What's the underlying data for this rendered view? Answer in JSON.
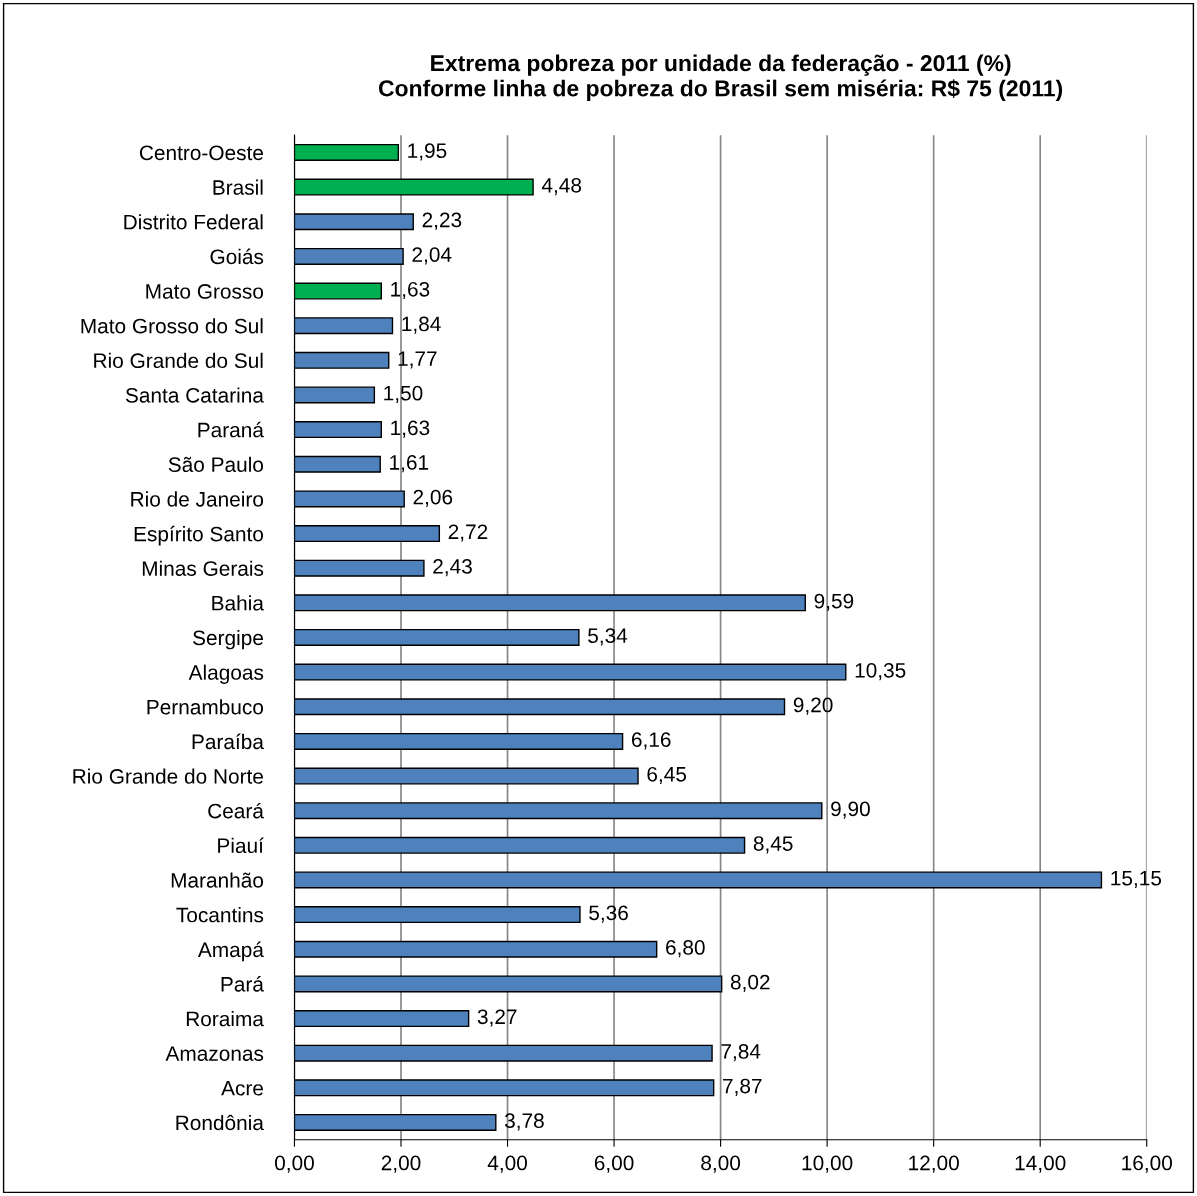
{
  "chart_data": {
    "type": "bar",
    "orientation": "horizontal",
    "title": "Extrema pobreza por unidade da federação - 2011 (%)\nConforme linha de pobreza do Brasil sem miséria: R$ 75 (2011)",
    "categories": [
      "Centro-Oeste",
      "Brasil",
      "Distrito Federal",
      "Goiás",
      "Mato Grosso",
      "Mato Grosso do Sul",
      "Rio Grande do Sul",
      "Santa Catarina",
      "Paraná",
      "São Paulo",
      "Rio de Janeiro",
      "Espírito Santo",
      "Minas Gerais",
      "Bahia",
      "Sergipe",
      "Alagoas",
      "Pernambuco",
      "Paraíba",
      "Rio Grande do Norte",
      "Ceará",
      "Piauí",
      "Maranhão",
      "Tocantins",
      "Amapá",
      "Pará",
      "Roraima",
      "Amazonas",
      "Acre",
      "Rondônia"
    ],
    "values": [
      1.95,
      4.48,
      2.23,
      2.04,
      1.63,
      1.84,
      1.77,
      1.5,
      1.63,
      1.61,
      2.06,
      2.72,
      2.43,
      9.59,
      5.34,
      10.35,
      9.2,
      6.16,
      6.45,
      9.9,
      8.45,
      15.15,
      5.36,
      6.8,
      8.02,
      3.27,
      7.84,
      7.87,
      3.78
    ],
    "value_labels": [
      "1,95",
      "4,48",
      "2,23",
      "2,04",
      "1,63",
      "1,84",
      "1,77",
      "1,50",
      "1,63",
      "1,61",
      "2,06",
      "2,72",
      "2,43",
      "9,59",
      "5,34",
      "10,35",
      "9,20",
      "6,16",
      "6,45",
      "9,90",
      "8,45",
      "15,15",
      "5,36",
      "6,80",
      "8,02",
      "3,27",
      "7,84",
      "7,87",
      "3,78"
    ],
    "colors": [
      "#00b050",
      "#00b050",
      "#4f81bd",
      "#4f81bd",
      "#00b050",
      "#4f81bd",
      "#4f81bd",
      "#4f81bd",
      "#4f81bd",
      "#4f81bd",
      "#4f81bd",
      "#4f81bd",
      "#4f81bd",
      "#4f81bd",
      "#4f81bd",
      "#4f81bd",
      "#4f81bd",
      "#4f81bd",
      "#4f81bd",
      "#4f81bd",
      "#4f81bd",
      "#4f81bd",
      "#4f81bd",
      "#4f81bd",
      "#4f81bd",
      "#4f81bd",
      "#4f81bd",
      "#4f81bd",
      "#4f81bd"
    ],
    "xlim": [
      0,
      16
    ],
    "xticks": [
      {
        "value": 0,
        "label": "0,00"
      },
      {
        "value": 2,
        "label": "2,00"
      },
      {
        "value": 4,
        "label": "4,00"
      },
      {
        "value": 6,
        "label": "6,00"
      },
      {
        "value": 8,
        "label": "8,00"
      },
      {
        "value": 10,
        "label": "10,00"
      },
      {
        "value": 12,
        "label": "12,00"
      },
      {
        "value": 14,
        "label": "14,00"
      },
      {
        "value": 16,
        "label": "16,00"
      }
    ],
    "grid": "x"
  }
}
